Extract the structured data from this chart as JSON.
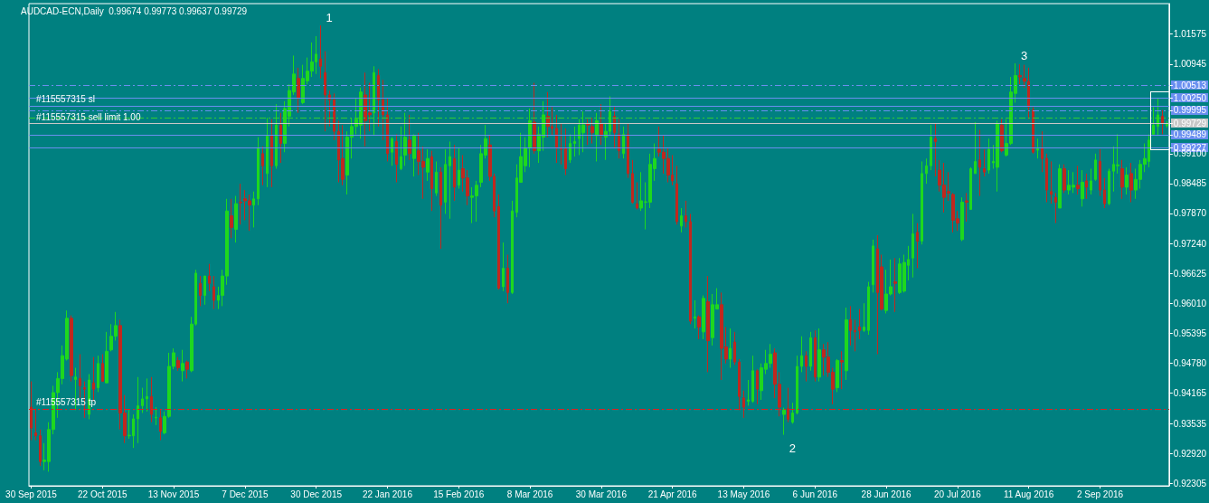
{
  "chart_data": {
    "type": "candlestick",
    "title": "AUDCAD-ECN,Daily  0.99674 0.99773 0.99637 0.99729",
    "categories": [
      "30 Sep 2015",
      null,
      null,
      null,
      null,
      null,
      null,
      null,
      null,
      null,
      null,
      null,
      null,
      null,
      null,
      null,
      "22 Oct 2015",
      null,
      null,
      null,
      null,
      null,
      null,
      null,
      null,
      null,
      null,
      null,
      null,
      null,
      null,
      null,
      "13 Nov 2015",
      null,
      null,
      null,
      null,
      null,
      null,
      null,
      null,
      null,
      null,
      null,
      null,
      null,
      null,
      null,
      "7 Dec 2015",
      null,
      null,
      null,
      null,
      null,
      null,
      null,
      null,
      null,
      null,
      null,
      null,
      null,
      null,
      null,
      "30 Dec 2015",
      null,
      null,
      null,
      null,
      null,
      null,
      null,
      null,
      null,
      null,
      null,
      null,
      null,
      null,
      null,
      "22 Jan 2016",
      null,
      null,
      null,
      null,
      null,
      null,
      null,
      null,
      null,
      null,
      null,
      null,
      null,
      null,
      null,
      "15 Feb 2016",
      null,
      null,
      null,
      null,
      null,
      null,
      null,
      null,
      null,
      null,
      null,
      null,
      null,
      null,
      null,
      "8 Mar 2016",
      null,
      null,
      null,
      null,
      null,
      null,
      null,
      null,
      null,
      null,
      null,
      null,
      null,
      null,
      null,
      "30 Mar 2016",
      null,
      null,
      null,
      null,
      null,
      null,
      null,
      null,
      null,
      null,
      null,
      null,
      null,
      null,
      null,
      "21 Apr 2016",
      null,
      null,
      null,
      null,
      null,
      null,
      null,
      null,
      null,
      null,
      null,
      null,
      null,
      null,
      null,
      "13 May 2016",
      null,
      null,
      null,
      null,
      null,
      null,
      null,
      null,
      null,
      null,
      null,
      null,
      null,
      null,
      null,
      "6 Jun 2016",
      null,
      null,
      null,
      null,
      null,
      null,
      null,
      null,
      null,
      null,
      null,
      null,
      null,
      null,
      null,
      "28 Jun 2016",
      null,
      null,
      null,
      null,
      null,
      null,
      null,
      null,
      null,
      null,
      null,
      null,
      null,
      null,
      null,
      "20 Jul 2016",
      null,
      null,
      null,
      null,
      null,
      null,
      null,
      null,
      null,
      null,
      null,
      null,
      null,
      null,
      null,
      "11 Aug 2016",
      null,
      null,
      null,
      null,
      null,
      null,
      null,
      null,
      null,
      null,
      null,
      null,
      null,
      null,
      null,
      "2 Sep 2016",
      null,
      null,
      null,
      null,
      null,
      null,
      null,
      null,
      null,
      null,
      null,
      null,
      null,
      null,
      null
    ],
    "ohlc": [
      [
        0.9388,
        0.9441,
        0.932,
        0.9345
      ],
      [
        0.9335,
        0.9385,
        0.932,
        0.9329
      ],
      [
        0.9329,
        0.9342,
        0.9267,
        0.9276
      ],
      [
        0.9276,
        0.9314,
        0.9258,
        0.9279
      ],
      [
        0.9276,
        0.9357,
        0.9255,
        0.9342
      ],
      [
        0.9342,
        0.9432,
        0.9332,
        0.9418
      ],
      [
        0.9418,
        0.946,
        0.9366,
        0.9447
      ],
      [
        0.9447,
        0.9515,
        0.9435,
        0.9494
      ],
      [
        0.9487,
        0.9587,
        0.9484,
        0.9571
      ],
      [
        0.9571,
        0.9577,
        0.9441,
        0.9453
      ],
      [
        0.9445,
        0.9469,
        0.9382,
        0.945
      ],
      [
        0.9447,
        0.9497,
        0.9407,
        0.9432
      ],
      [
        0.9428,
        0.9441,
        0.9366,
        0.9425
      ],
      [
        0.9373,
        0.9456,
        0.9363,
        0.9444
      ],
      [
        0.9438,
        0.9491,
        0.94,
        0.9425
      ],
      [
        0.9428,
        0.9494,
        0.9419,
        0.9478
      ],
      [
        0.9478,
        0.9497,
        0.9441,
        0.9441
      ],
      [
        0.9438,
        0.9543,
        0.9438,
        0.9503
      ],
      [
        0.9506,
        0.9559,
        0.9503,
        0.9534
      ],
      [
        0.9534,
        0.9584,
        0.9525,
        0.9556
      ],
      [
        0.9556,
        0.9568,
        0.9342,
        0.9376
      ],
      [
        0.9376,
        0.9413,
        0.9314,
        0.9329
      ],
      [
        0.9329,
        0.9382,
        0.9323,
        0.933
      ],
      [
        0.9329,
        0.9373,
        0.9304,
        0.9364
      ],
      [
        0.9364,
        0.945,
        0.9314,
        0.9391
      ],
      [
        0.9391,
        0.9428,
        0.9376,
        0.9405
      ],
      [
        0.9405,
        0.9447,
        0.9379,
        0.941
      ],
      [
        0.941,
        0.945,
        0.9357,
        0.9373
      ],
      [
        0.9366,
        0.9388,
        0.9351,
        0.9367
      ],
      [
        0.9366,
        0.9382,
        0.932,
        0.9338
      ],
      [
        0.9335,
        0.9379,
        0.9332,
        0.9369
      ],
      [
        0.9369,
        0.95,
        0.9366,
        0.9472
      ],
      [
        0.9472,
        0.9509,
        0.9466,
        0.95
      ],
      [
        0.9484,
        0.9491,
        0.9463,
        0.9469
      ],
      [
        0.9463,
        0.9506,
        0.9441,
        0.9478
      ],
      [
        0.9481,
        0.9484,
        0.9447,
        0.9466
      ],
      [
        0.9463,
        0.9574,
        0.946,
        0.9559
      ],
      [
        0.9559,
        0.9671,
        0.9556,
        0.9664
      ],
      [
        0.9643,
        0.9658,
        0.9596,
        0.9618
      ],
      [
        0.9618,
        0.9658,
        0.9599,
        0.9658
      ],
      [
        0.9658,
        0.9683,
        0.9627,
        0.9643
      ],
      [
        0.9636,
        0.9658,
        0.959,
        0.9608
      ],
      [
        0.9608,
        0.9636,
        0.959,
        0.9618
      ],
      [
        0.9618,
        0.9671,
        0.9596,
        0.9658
      ],
      [
        0.9658,
        0.9817,
        0.964,
        0.9792
      ],
      [
        0.9782,
        0.9817,
        0.9736,
        0.9758
      ],
      [
        0.9754,
        0.9823,
        0.9727,
        0.9807
      ],
      [
        0.981,
        0.9848,
        0.9764,
        0.9809
      ],
      [
        0.9817,
        0.9835,
        0.9773,
        0.9813
      ],
      [
        0.9813,
        0.9826,
        0.9751,
        0.9804
      ],
      [
        0.9804,
        0.9832,
        0.9758,
        0.9817
      ],
      [
        0.9817,
        0.9944,
        0.9804,
        0.9922
      ],
      [
        0.991,
        0.9925,
        0.9845,
        0.9885
      ],
      [
        0.9869,
        0.9984,
        0.9841,
        0.9947
      ],
      [
        0.9947,
        0.9981,
        0.9841,
        0.9885
      ],
      [
        0.9885,
        1.0012,
        0.9879,
        0.9969
      ],
      [
        0.9969,
        0.9994,
        0.9891,
        0.9931
      ],
      [
        0.9931,
        1.0018,
        0.9913,
        1.0003
      ],
      [
        0.9987,
        1.0053,
        0.9966,
        1.004
      ],
      [
        1.0037,
        1.0112,
        1.0031,
        1.0074
      ],
      [
        1.0065,
        1.0087,
        0.9994,
        1.0025
      ],
      [
        1.0015,
        1.0093,
        1.0012,
        1.0065
      ],
      [
        1.006,
        1.0108,
        1.0053,
        1.008
      ],
      [
        1.008,
        1.0139,
        1.0068,
        1.0099
      ],
      [
        1.0099,
        1.0152,
        1.0074,
        1.0115
      ],
      [
        1.0105,
        1.0174,
        1.0065,
        1.009
      ],
      [
        1.0077,
        1.0121,
        0.9956,
        1.0031
      ],
      [
        1.0031,
        1.004,
        0.9966,
        1.0021
      ],
      [
        1.0021,
        1.0034,
        0.9938,
        0.9956
      ],
      [
        0.9956,
        0.9978,
        0.9851,
        0.9897
      ],
      [
        0.99,
        0.9969,
        0.9845,
        0.9857
      ],
      [
        0.9866,
        0.9956,
        0.9826,
        0.9944
      ],
      [
        0.9944,
        0.9984,
        0.99,
        0.9966
      ],
      [
        0.9966,
        1.0025,
        0.995,
        0.9981
      ],
      [
        0.9969,
        1.0046,
        0.9941,
        1.0037
      ],
      [
        1.0031,
        1.0077,
        0.9925,
        0.9978
      ],
      [
        0.9994,
        1.0056,
        0.9956,
        0.999
      ],
      [
        0.9994,
        1.009,
        0.9947,
        1.0077
      ],
      [
        1.0071,
        1.0084,
        0.9966,
        1.0021
      ],
      [
        1.0021,
        1.0062,
        0.9938,
        0.999
      ],
      [
        0.999,
        1.0025,
        0.9894,
        0.991
      ],
      [
        0.9913,
        0.9944,
        0.9885,
        0.9941
      ],
      [
        0.9935,
        0.995,
        0.9851,
        0.9888
      ],
      [
        0.9879,
        0.9966,
        0.9876,
        0.9904
      ],
      [
        0.9907,
        0.9994,
        0.9885,
        0.9944
      ],
      [
        0.9938,
        0.999,
        0.9897,
        0.991
      ],
      [
        0.99,
        0.995,
        0.9863,
        0.9947
      ],
      [
        0.9916,
        0.9953,
        0.9866,
        0.9894
      ],
      [
        0.9894,
        0.9925,
        0.9817,
        0.9882
      ],
      [
        0.9872,
        0.9919,
        0.9854,
        0.99
      ],
      [
        0.9904,
        0.9916,
        0.9792,
        0.9838
      ],
      [
        0.9829,
        0.9894,
        0.9823,
        0.9872
      ],
      [
        0.9872,
        0.9882,
        0.9714,
        0.9804
      ],
      [
        0.981,
        0.9919,
        0.9786,
        0.9888
      ],
      [
        0.9885,
        0.9935,
        0.9776,
        0.9904
      ],
      [
        0.99,
        0.9928,
        0.9813,
        0.9841
      ],
      [
        0.9845,
        0.9922,
        0.9838,
        0.9876
      ],
      [
        0.9879,
        0.9907,
        0.9832,
        0.986
      ],
      [
        0.986,
        0.9876,
        0.9804,
        0.9823
      ],
      [
        0.982,
        0.9841,
        0.9767,
        0.9823
      ],
      [
        0.9823,
        0.9854,
        0.977,
        0.9845
      ],
      [
        0.9851,
        0.9928,
        0.9841,
        0.991
      ],
      [
        0.9907,
        0.9969,
        0.99,
        0.9941
      ],
      [
        0.9928,
        0.9947,
        0.9854,
        0.9863
      ],
      [
        0.9863,
        0.9869,
        0.9779,
        0.9792
      ],
      [
        0.9801,
        0.9826,
        0.963,
        0.9633
      ],
      [
        0.9636,
        0.9727,
        0.9627,
        0.9674
      ],
      [
        0.9674,
        0.9702,
        0.9602,
        0.9624
      ],
      [
        0.9624,
        0.9813,
        0.9621,
        0.9792
      ],
      [
        0.9789,
        0.9888,
        0.9779,
        0.986
      ],
      [
        0.9851,
        0.9953,
        0.9851,
        0.9904
      ],
      [
        0.9885,
        0.9944,
        0.9872,
        0.9922
      ],
      [
        0.9922,
        1.0003,
        0.9882,
        0.9978
      ],
      [
        0.9975,
        1.0056,
        0.991,
        0.9916
      ],
      [
        0.9916,
        0.9966,
        0.9891,
        0.995
      ],
      [
        0.9944,
        1.0018,
        0.9916,
        0.999
      ],
      [
        0.9987,
        1.0037,
        0.9944,
        0.9966
      ],
      [
        0.9966,
        1.0006,
        0.9947,
        0.9962
      ],
      [
        0.9962,
        0.999,
        0.9891,
        0.9922
      ],
      [
        0.9922,
        0.9972,
        0.9888,
        0.9919
      ],
      [
        0.9922,
        0.9962,
        0.9866,
        0.9879
      ],
      [
        0.9897,
        0.995,
        0.9891,
        0.9931
      ],
      [
        0.9931,
        0.9966,
        0.9904,
        0.9935
      ],
      [
        0.9941,
        0.9981,
        0.9907,
        0.9969
      ],
      [
        0.9953,
        0.9997,
        0.9913,
        0.9969
      ],
      [
        0.9972,
        0.9981,
        0.9928,
        0.9969
      ],
      [
        0.9966,
        0.9984,
        0.9931,
        0.9953
      ],
      [
        0.9947,
        0.9994,
        0.9894,
        0.9978
      ],
      [
        0.9972,
        1.0012,
        0.9928,
        0.9947
      ],
      [
        0.9944,
        0.9972,
        0.9897,
        0.9956
      ],
      [
        0.9956,
        1.0028,
        0.9947,
        0.9997
      ],
      [
        0.9987,
        1.0006,
        0.9922,
        0.9953
      ],
      [
        0.995,
        0.9981,
        0.99,
        0.9916
      ],
      [
        0.991,
        0.9966,
        0.99,
        0.995
      ],
      [
        0.995,
        0.9972,
        0.986,
        0.9869
      ],
      [
        0.9869,
        0.9897,
        0.9807,
        0.981
      ],
      [
        0.9807,
        0.9851,
        0.9795,
        0.9798
      ],
      [
        0.9798,
        0.9872,
        0.9792,
        0.9813
      ],
      [
        0.981,
        0.9851,
        0.9754,
        0.9811
      ],
      [
        0.981,
        0.991,
        0.9798,
        0.9888
      ],
      [
        0.9879,
        0.9931,
        0.9854,
        0.99
      ],
      [
        0.9919,
        0.9966,
        0.9904,
        0.9913
      ],
      [
        0.9913,
        0.9947,
        0.9869,
        0.99
      ],
      [
        0.99,
        0.9922,
        0.9851,
        0.9866
      ],
      [
        0.9866,
        0.9907,
        0.9845,
        0.9854
      ],
      [
        0.9848,
        0.9885,
        0.9764,
        0.977
      ],
      [
        0.9761,
        0.9798,
        0.9748,
        0.9782
      ],
      [
        0.9782,
        0.9813,
        0.9758,
        0.977
      ],
      [
        0.977,
        0.9786,
        0.9559,
        0.9565
      ],
      [
        0.9571,
        0.9608,
        0.955,
        0.9574
      ],
      [
        0.9574,
        0.9577,
        0.9528,
        0.9553
      ],
      [
        0.9543,
        0.9618,
        0.9528,
        0.9612
      ],
      [
        0.9605,
        0.9658,
        0.946,
        0.9525
      ],
      [
        0.9531,
        0.9621,
        0.9515,
        0.9599
      ],
      [
        0.959,
        0.9633,
        0.959,
        0.9599
      ],
      [
        0.9599,
        0.9624,
        0.9444,
        0.9509
      ],
      [
        0.9512,
        0.9553,
        0.9478,
        0.9487
      ],
      [
        0.9487,
        0.955,
        0.9469,
        0.9509
      ],
      [
        0.9522,
        0.9543,
        0.9475,
        0.9481
      ],
      [
        0.9481,
        0.9487,
        0.9382,
        0.941
      ],
      [
        0.9407,
        0.9422,
        0.9366,
        0.9388
      ],
      [
        0.94,
        0.9444,
        0.9391,
        0.9403
      ],
      [
        0.94,
        0.9494,
        0.9397,
        0.9463
      ],
      [
        0.9463,
        0.9466,
        0.9394,
        0.9425
      ],
      [
        0.9422,
        0.9478,
        0.9403,
        0.9469
      ],
      [
        0.9466,
        0.9506,
        0.9456,
        0.9478
      ],
      [
        0.9478,
        0.9518,
        0.9469,
        0.9497
      ],
      [
        0.95,
        0.9509,
        0.9407,
        0.9435
      ],
      [
        0.9435,
        0.946,
        0.9369,
        0.9388
      ],
      [
        0.9373,
        0.9387,
        0.9331,
        0.9382
      ],
      [
        0.9385,
        0.9428,
        0.9357,
        0.9363
      ],
      [
        0.9357,
        0.9397,
        0.9354,
        0.9376
      ],
      [
        0.9376,
        0.9494,
        0.9373,
        0.9472
      ],
      [
        0.9472,
        0.9534,
        0.946,
        0.9494
      ],
      [
        0.9494,
        0.9503,
        0.9441,
        0.9472
      ],
      [
        0.9472,
        0.9543,
        0.9463,
        0.9531
      ],
      [
        0.9531,
        0.9546,
        0.9441,
        0.945
      ],
      [
        0.945,
        0.955,
        0.9441,
        0.9506
      ],
      [
        0.9506,
        0.9518,
        0.9453,
        0.9491
      ],
      [
        0.9491,
        0.9522,
        0.945,
        0.946
      ],
      [
        0.946,
        0.9469,
        0.9394,
        0.9425
      ],
      [
        0.9428,
        0.9487,
        0.9419,
        0.9484
      ],
      [
        0.9484,
        0.9503,
        0.9425,
        0.9481
      ],
      [
        0.9463,
        0.9593,
        0.9444,
        0.9568
      ],
      [
        0.9568,
        0.9596,
        0.9515,
        0.9546
      ],
      [
        0.9546,
        0.9568,
        0.9503,
        0.9543
      ],
      [
        0.9553,
        0.959,
        0.9528,
        0.9546
      ],
      [
        0.9546,
        0.9602,
        0.9543,
        0.9553
      ],
      [
        0.9546,
        0.9646,
        0.9537,
        0.9636
      ],
      [
        0.964,
        0.9733,
        0.9624,
        0.972
      ],
      [
        0.9714,
        0.9742,
        0.9497,
        0.9624
      ],
      [
        0.9677,
        0.9702,
        0.9587,
        0.959
      ],
      [
        0.9587,
        0.9671,
        0.9581,
        0.9621
      ],
      [
        0.9621,
        0.9692,
        0.9618,
        0.9636
      ],
      [
        0.9646,
        0.9695,
        0.9584,
        0.9643
      ],
      [
        0.9624,
        0.9695,
        0.9621,
        0.9683
      ],
      [
        0.9627,
        0.9702,
        0.9624,
        0.9686
      ],
      [
        0.968,
        0.972,
        0.9649,
        0.9692
      ],
      [
        0.9695,
        0.9786,
        0.9655,
        0.9745
      ],
      [
        0.9748,
        0.9767,
        0.9674,
        0.973
      ],
      [
        0.973,
        0.9894,
        0.9723,
        0.9869
      ],
      [
        0.9869,
        0.99,
        0.9848,
        0.9885
      ],
      [
        0.9885,
        0.9969,
        0.9876,
        0.9944
      ],
      [
        0.9941,
        0.9972,
        0.9863,
        0.9935
      ],
      [
        0.9876,
        0.9897,
        0.9832,
        0.9845
      ],
      [
        0.9845,
        0.9891,
        0.9789,
        0.982
      ],
      [
        0.9832,
        0.9872,
        0.9813,
        0.9829
      ],
      [
        0.9826,
        0.9829,
        0.9748,
        0.9773
      ],
      [
        0.9776,
        0.9792,
        0.9751,
        0.9767
      ],
      [
        0.9733,
        0.982,
        0.973,
        0.981
      ],
      [
        0.9813,
        0.9829,
        0.977,
        0.981
      ],
      [
        0.9795,
        0.9882,
        0.9795,
        0.9879
      ],
      [
        0.9869,
        0.9975,
        0.9869,
        0.9894
      ],
      [
        0.9897,
        0.9959,
        0.9823,
        0.9882
      ],
      [
        0.9879,
        0.9919,
        0.9863,
        0.9872
      ],
      [
        0.9876,
        0.9941,
        0.9869,
        0.9919
      ],
      [
        0.9891,
        0.9928,
        0.9879,
        0.9894
      ],
      [
        0.9882,
        0.9978,
        0.9832,
        0.9972
      ],
      [
        0.9969,
        0.9981,
        0.9913,
        0.9916
      ],
      [
        0.9907,
        0.9981,
        0.9904,
        0.9931
      ],
      [
        0.9931,
        1.0068,
        0.9928,
        1.0037
      ],
      [
        1.0034,
        1.0096,
        1.0015,
        1.0071
      ],
      [
        1.0071,
        1.0094,
        1.0053,
        1.0068
      ],
      [
        1.0065,
        1.0093,
        1.0046,
        1.0059
      ],
      [
        1.0059,
        1.0087,
        0.9981,
        1.0006
      ],
      [
        1.0,
        1.0006,
        0.991,
        0.9913
      ],
      [
        0.9917,
        0.9941,
        0.99,
        0.992
      ],
      [
        0.9922,
        0.9956,
        0.9872,
        0.99
      ],
      [
        0.99,
        0.991,
        0.981,
        0.9835
      ],
      [
        0.9832,
        0.9894,
        0.9807,
        0.9826
      ],
      [
        0.982,
        0.9829,
        0.9767,
        0.981
      ],
      [
        0.9798,
        0.9888,
        0.9798,
        0.9879
      ],
      [
        0.9879,
        0.9888,
        0.9829,
        0.9835
      ],
      [
        0.9835,
        0.9876,
        0.9826,
        0.9845
      ],
      [
        0.9841,
        0.9872,
        0.9829,
        0.9845
      ],
      [
        0.9845,
        0.9885,
        0.9826,
        0.9838
      ],
      [
        0.9817,
        0.9876,
        0.9801,
        0.9851
      ],
      [
        0.9854,
        0.9869,
        0.9817,
        0.9841
      ],
      [
        0.9835,
        0.9879,
        0.9826,
        0.9854
      ],
      [
        0.9857,
        0.991,
        0.9854,
        0.9897
      ],
      [
        0.9894,
        0.9919,
        0.9823,
        0.9835
      ],
      [
        0.9835,
        0.986,
        0.9798,
        0.9807
      ],
      [
        0.9807,
        0.9879,
        0.9804,
        0.9874
      ],
      [
        0.9874,
        0.9925,
        0.9832,
        0.9888
      ],
      [
        0.9885,
        0.995,
        0.9869,
        0.9887
      ],
      [
        0.9879,
        0.9897,
        0.9817,
        0.9841
      ],
      [
        0.9841,
        0.9882,
        0.9826,
        0.9866
      ],
      [
        0.9869,
        0.9891,
        0.981,
        0.9835
      ],
      [
        0.9835,
        0.9879,
        0.9817,
        0.9857
      ],
      [
        0.9857,
        0.9897,
        0.9838,
        0.9888
      ],
      [
        0.9888,
        0.9931,
        0.9872,
        0.99
      ],
      [
        0.9894,
        0.995,
        0.9882,
        0.9938
      ],
      [
        0.995,
        1.0006,
        0.9947,
        0.9969
      ],
      [
        0.9966,
        1.0025,
        0.9947,
        0.999
      ],
      [
        0.9987,
        1.0,
        0.995,
        0.9972
      ],
      [
        0.99674,
        0.99773,
        0.99637,
        0.99729
      ]
    ],
    "colors": [
      "#c0281e",
      "#c0281e",
      "#c0281e",
      "#1ed81e",
      "#1ed81e",
      "#1ed81e",
      "#1ed81e",
      "#1ed81e",
      "#1ed81e",
      "#c0281e",
      "#1ed81e",
      "#c0281e",
      "#c0281e",
      "#1ed81e",
      "#c0281e",
      "#1ed81e",
      "#c0281e",
      "#1ed81e",
      "#1ed81e",
      "#1ed81e",
      "#c0281e",
      "#c0281e",
      "#1ed81e",
      "#1ed81e",
      "#1ed81e",
      "#1ed81e",
      "#1ed81e",
      "#c0281e",
      "#1ed81e",
      "#c0281e",
      "#1ed81e",
      "#1ed81e",
      "#1ed81e",
      "#c0281e",
      "#1ed81e",
      "#c0281e",
      "#1ed81e",
      "#1ed81e",
      "#c0281e",
      "#1ed81e",
      "#c0281e",
      "#c0281e",
      "#1ed81e",
      "#1ed81e",
      "#1ed81e",
      "#c0281e",
      "#1ed81e",
      "#c0281e",
      "#c0281e",
      "#c0281e",
      "#1ed81e",
      "#1ed81e",
      "#c0281e",
      "#1ed81e",
      "#c0281e",
      "#1ed81e",
      "#c0281e",
      "#1ed81e",
      "#1ed81e",
      "#1ed81e",
      "#c0281e",
      "#1ed81e",
      "#1ed81e",
      "#1ed81e",
      "#1ed81e",
      "#c0281e",
      "#c0281e",
      "#c0281e",
      "#c0281e",
      "#c0281e",
      "#c0281e",
      "#1ed81e",
      "#1ed81e",
      "#1ed81e",
      "#1ed81e",
      "#c0281e",
      "#c0281e",
      "#1ed81e",
      "#c0281e",
      "#c0281e",
      "#c0281e",
      "#1ed81e",
      "#c0281e",
      "#1ed81e",
      "#1ed81e",
      "#c0281e",
      "#1ed81e",
      "#c0281e",
      "#c0281e",
      "#1ed81e",
      "#c0281e",
      "#1ed81e",
      "#c0281e",
      "#1ed81e",
      "#1ed81e",
      "#c0281e",
      "#1ed81e",
      "#c0281e",
      "#c0281e",
      "#1ed81e",
      "#1ed81e",
      "#1ed81e",
      "#1ed81e",
      "#c0281e",
      "#c0281e",
      "#c0281e",
      "#1ed81e",
      "#c0281e",
      "#1ed81e",
      "#1ed81e",
      "#1ed81e",
      "#1ed81e",
      "#1ed81e",
      "#c0281e",
      "#1ed81e",
      "#1ed81e",
      "#c0281e",
      "#c0281e",
      "#c0281e",
      "#c0281e",
      "#c0281e",
      "#1ed81e",
      "#1ed81e",
      "#1ed81e",
      "#1ed81e",
      "#c0281e",
      "#c0281e",
      "#1ed81e",
      "#c0281e",
      "#1ed81e",
      "#1ed81e",
      "#c0281e",
      "#c0281e",
      "#1ed81e",
      "#c0281e",
      "#c0281e",
      "#c0281e",
      "#1ed81e",
      "#1ed81e",
      "#1ed81e",
      "#1ed81e",
      "#c0281e",
      "#c0281e",
      "#c0281e",
      "#c0281e",
      "#c0281e",
      "#1ed81e",
      "#c0281e",
      "#c0281e",
      "#1ed81e",
      "#c0281e",
      "#1ed81e",
      "#c0281e",
      "#1ed81e",
      "#1ed81e",
      "#c0281e",
      "#c0281e",
      "#1ed81e",
      "#c0281e",
      "#c0281e",
      "#c0281e",
      "#1ed81e",
      "#1ed81e",
      "#c0281e",
      "#1ed81e",
      "#1ed81e",
      "#1ed81e",
      "#c0281e",
      "#c0281e",
      "#1ed81e",
      "#c0281e",
      "#1ed81e",
      "#1ed81e",
      "#1ed81e",
      "#c0281e",
      "#1ed81e",
      "#c0281e",
      "#1ed81e",
      "#c0281e",
      "#c0281e",
      "#c0281e",
      "#1ed81e",
      "#c0281e",
      "#1ed81e",
      "#c0281e",
      "#c0281e",
      "#c0281e",
      "#1ed81e",
      "#1ed81e",
      "#1ed81e",
      "#c0281e",
      "#c0281e",
      "#1ed81e",
      "#1ed81e",
      "#c0281e",
      "#1ed81e",
      "#1ed81e",
      "#1ed81e",
      "#1ed81e",
      "#c0281e",
      "#1ed81e",
      "#1ed81e",
      "#1ed81e",
      "#c0281e",
      "#c0281e",
      "#c0281e",
      "#c0281e",
      "#c0281e",
      "#c0281e",
      "#1ed81e",
      "#c0281e",
      "#1ed81e",
      "#1ed81e",
      "#c0281e",
      "#c0281e",
      "#1ed81e",
      "#1ed81e",
      "#1ed81e",
      "#c0281e",
      "#1ed81e",
      "#1ed81e",
      "#1ed81e",
      "#c0281e",
      "#c0281e",
      "#c0281e",
      "#c0281e",
      "#1ed81e",
      "#c0281e",
      "#c0281e",
      "#c0281e",
      "#c0281e",
      "#1ed81e",
      "#c0281e",
      "#1ed81e",
      "#1ed81e",
      "#c0281e",
      "#1ed81e",
      "#c0281e",
      "#1ed81e",
      "#1ed81e",
      "#c0281e",
      "#c0281e",
      "#1ed81e",
      "#1ed81e",
      "#1ed81e",
      "#c0281e",
      "#1ed81e",
      "#c0281e",
      "#1ed81e",
      "#1ed81e",
      "#1ed81e",
      "#1ed81e",
      "#1ed81e",
      "#1ed81e",
      "#c0281e",
      "#1ed81e"
    ],
    "value_labels": [
      null,
      null,
      null,
      null,
      null,
      null,
      null,
      null,
      null,
      null,
      null,
      null,
      null,
      null,
      null,
      null,
      null,
      null,
      null,
      null,
      null,
      null,
      null,
      null,
      null,
      null,
      null,
      null,
      null,
      null,
      null,
      null,
      null,
      null,
      null,
      null,
      null,
      null,
      null,
      null,
      null,
      null,
      null,
      null,
      null,
      null,
      null,
      null,
      null,
      null,
      null,
      null,
      null,
      null,
      null,
      null,
      null,
      null,
      null,
      null,
      null,
      null,
      null,
      null,
      null,
      "1",
      null,
      null,
      null,
      null,
      null,
      null,
      null,
      null,
      null,
      null,
      null,
      null,
      null,
      null,
      null,
      null,
      null,
      null,
      null,
      null,
      null,
      null,
      null,
      null,
      null,
      null,
      null,
      null,
      null,
      null,
      null,
      null,
      null,
      null,
      null,
      null,
      null,
      null,
      null,
      null,
      null,
      null,
      null,
      null,
      null,
      null,
      null,
      null,
      null,
      null,
      null,
      null,
      null,
      null,
      null,
      null,
      null,
      null,
      null,
      null,
      null,
      null,
      null,
      null,
      null,
      null,
      null,
      null,
      null,
      null,
      null,
      null,
      null,
      null,
      null,
      null,
      null,
      null,
      null,
      null,
      null,
      null,
      null,
      null,
      null,
      null,
      null,
      null,
      null,
      null,
      null,
      null,
      null,
      null,
      null,
      null,
      null,
      null,
      null,
      null,
      null,
      null,
      null,
      "2",
      null,
      null,
      null,
      null,
      null,
      null,
      null,
      null,
      null,
      null,
      null,
      null,
      null,
      null,
      null,
      null,
      null,
      null,
      null,
      null,
      null,
      null,
      null,
      null,
      null,
      null,
      null,
      null,
      null,
      null,
      null,
      null,
      null,
      null,
      null,
      null,
      null,
      null,
      null,
      null,
      null,
      null,
      null,
      null,
      null,
      null,
      null,
      null,
      null,
      null,
      null,
      "3",
      null,
      null,
      null,
      null,
      null,
      null,
      null,
      null,
      null,
      null,
      null,
      null,
      null,
      null,
      null,
      null,
      null,
      null,
      null,
      null,
      null,
      null,
      null,
      null,
      null,
      null,
      null,
      null,
      null,
      null,
      null,
      null,
      null,
      null
    ],
    "ylim": [
      0.9226,
      1.0219
    ],
    "yticks": [
      1.01575,
      1.00945,
      1.00513,
      {
        "value": 1.0025,
        "label": "1.00250"
      },
      0.99995,
      0.99729,
      0.99489,
      0.99227,
      {
        "value": 0.991,
        "label": "0.99100"
      },
      0.98485,
      {
        "value": 0.9787,
        "label": "0.97870"
      },
      {
        "value": 0.9724,
        "label": "0.97240"
      },
      0.96625,
      {
        "value": 0.9601,
        "label": "0.96010"
      },
      0.95395,
      {
        "value": 0.9478,
        "label": "0.94780"
      },
      0.94165,
      0.93535,
      {
        "value": 0.9292,
        "label": "0.92920"
      },
      0.92305
    ],
    "ref_lines": [
      {
        "axis": "y",
        "value": 1.00513,
        "color": "#6a8ff0",
        "line_style": "dashed"
      },
      {
        "axis": "y",
        "value": 1.0025,
        "color": "#6a8ff0",
        "line_style": "solid"
      },
      {
        "axis": "y",
        "value": 1.0008,
        "label": "#115557315 sl",
        "color": "#6a8ff0",
        "line_style": "solid"
      },
      {
        "axis": "y",
        "value": 0.99995,
        "label": "#115557315 sell limit 1.00",
        "color": "#6a8ff0",
        "line_style": "dashed"
      },
      {
        "axis": "y",
        "value": 0.9984,
        "color": "#32cd32",
        "line_style": "dashed"
      },
      {
        "axis": "y",
        "value": 0.99729,
        "color": "#c8c8c8",
        "line_style": "solid"
      },
      {
        "axis": "y",
        "value": 0.99489,
        "color": "#6a8ff0",
        "line_style": "solid"
      },
      {
        "axis": "y",
        "value": 0.99227,
        "color": "#6a8ff0",
        "line_style": "solid"
      },
      {
        "axis": "y",
        "value": 0.9384,
        "label": "#115557315 tp",
        "color": "#e02020",
        "line_style": "dashed"
      }
    ]
  }
}
